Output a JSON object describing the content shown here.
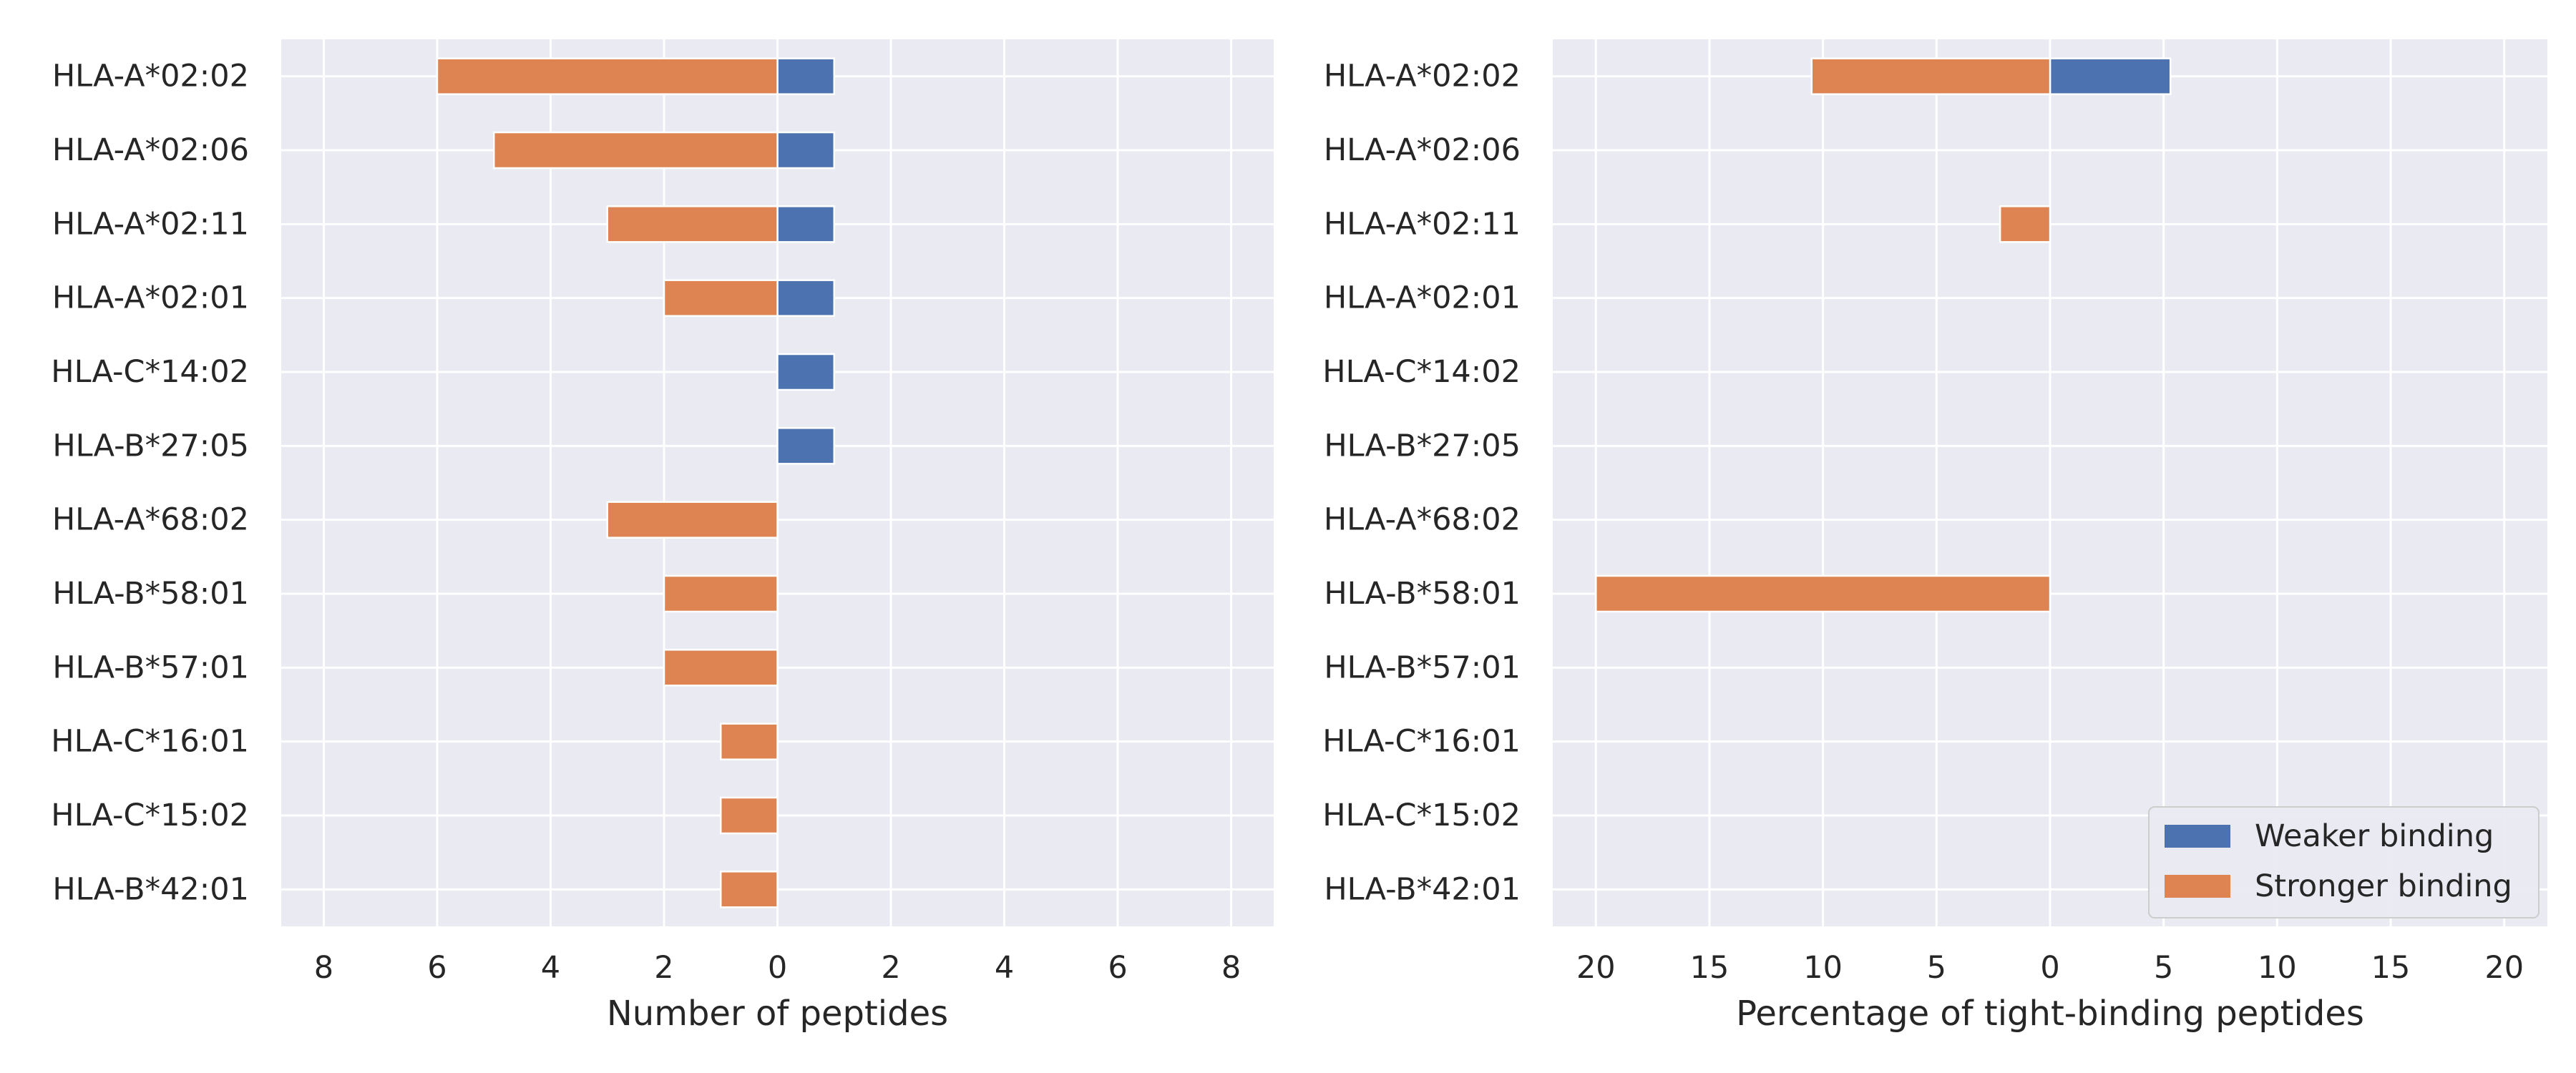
{
  "chart_data": [
    {
      "type": "bar",
      "orientation": "horizontal-diverging",
      "categories": [
        "HLA-A*02:02",
        "HLA-A*02:06",
        "HLA-A*02:11",
        "HLA-A*02:01",
        "HLA-C*14:02",
        "HLA-B*27:05",
        "HLA-A*68:02",
        "HLA-B*58:01",
        "HLA-B*57:01",
        "HLA-C*16:01",
        "HLA-C*15:02",
        "HLA-B*42:01"
      ],
      "series": [
        {
          "name": "Weaker binding",
          "color": "#4c72b0",
          "direction": "right",
          "values": [
            1,
            1,
            1,
            1,
            1,
            1,
            0,
            0,
            0,
            0,
            0,
            0
          ]
        },
        {
          "name": "Stronger binding",
          "color": "#dd8452",
          "direction": "left",
          "values": [
            6,
            5,
            3,
            2,
            0,
            0,
            3,
            2,
            2,
            1,
            1,
            1
          ]
        }
      ],
      "xlabel": "Number of peptides",
      "xlim": [
        -8.75,
        8.75
      ],
      "xticks": [
        -8,
        -6,
        -4,
        -2,
        0,
        2,
        4,
        6,
        8
      ],
      "xtick_labels": [
        "8",
        "6",
        "4",
        "2",
        "0",
        "2",
        "4",
        "6",
        "8"
      ],
      "grid": true,
      "legend": false
    },
    {
      "type": "bar",
      "orientation": "horizontal-diverging",
      "categories": [
        "HLA-A*02:02",
        "HLA-A*02:06",
        "HLA-A*02:11",
        "HLA-A*02:01",
        "HLA-C*14:02",
        "HLA-B*27:05",
        "HLA-A*68:02",
        "HLA-B*58:01",
        "HLA-B*57:01",
        "HLA-C*16:01",
        "HLA-C*15:02",
        "HLA-B*42:01"
      ],
      "series": [
        {
          "name": "Weaker binding",
          "color": "#4c72b0",
          "direction": "right",
          "values": [
            5.3,
            0,
            0,
            0,
            0,
            0,
            0,
            0,
            0,
            0,
            0,
            0
          ]
        },
        {
          "name": "Stronger binding",
          "color": "#dd8452",
          "direction": "left",
          "values": [
            10.5,
            0,
            2.2,
            0,
            0,
            0,
            0,
            20,
            0,
            0,
            0,
            0
          ]
        }
      ],
      "xlabel": "Percentage of tight-binding peptides",
      "xlim": [
        -21.9,
        21.9
      ],
      "xticks": [
        -20,
        -15,
        -10,
        -5,
        0,
        5,
        10,
        15,
        20
      ],
      "xtick_labels": [
        "20",
        "15",
        "10",
        "5",
        "0",
        "5",
        "10",
        "15",
        "20"
      ],
      "grid": true,
      "legend": true,
      "legend_position": "lower-right",
      "legend_labels": [
        "Weaker binding",
        "Stronger binding"
      ]
    }
  ],
  "style": {
    "background": "#eaeaf2",
    "grid_color": "#ffffff",
    "text_color": "#262626"
  }
}
